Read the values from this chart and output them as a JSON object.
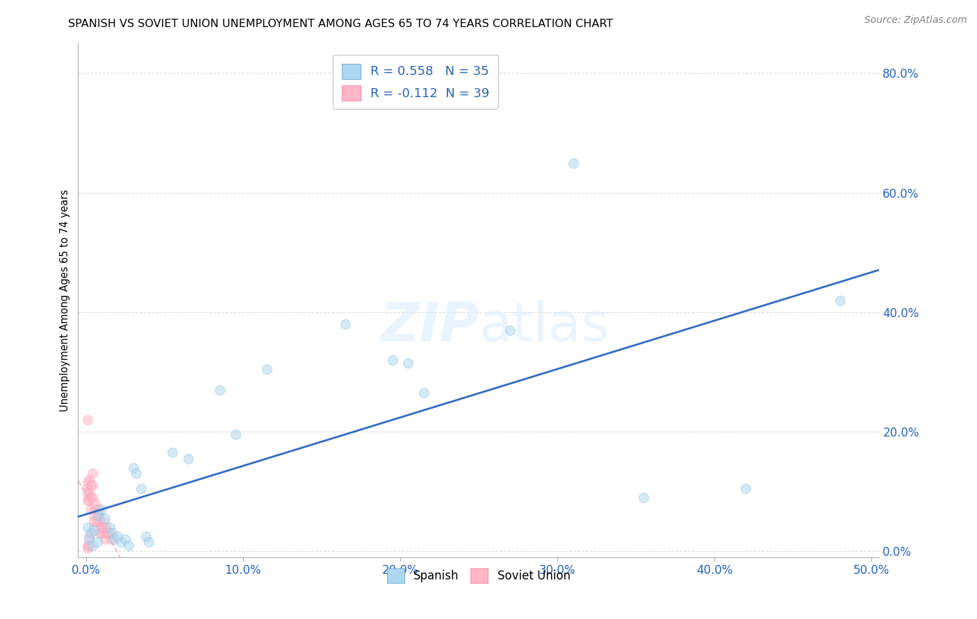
{
  "title": "SPANISH VS SOVIET UNION UNEMPLOYMENT AMONG AGES 65 TO 74 YEARS CORRELATION CHART",
  "source": "Source: ZipAtlas.com",
  "ylabel": "Unemployment Among Ages 65 to 74 years",
  "xlim": [
    -0.005,
    0.505
  ],
  "ylim": [
    -0.01,
    0.85
  ],
  "xticks": [
    0.0,
    0.1,
    0.2,
    0.3,
    0.4,
    0.5
  ],
  "yticks": [
    0.0,
    0.2,
    0.4,
    0.6,
    0.8
  ],
  "spanish_x": [
    0.001,
    0.002,
    0.003,
    0.004,
    0.005,
    0.007,
    0.008,
    0.01,
    0.012,
    0.015,
    0.017,
    0.018,
    0.02,
    0.022,
    0.025,
    0.027,
    0.03,
    0.032,
    0.035,
    0.038,
    0.04,
    0.055,
    0.065,
    0.085,
    0.095,
    0.115,
    0.165,
    0.195,
    0.205,
    0.215,
    0.27,
    0.31,
    0.355,
    0.42,
    0.48
  ],
  "spanish_y": [
    0.04,
    0.02,
    0.03,
    0.01,
    0.035,
    0.015,
    0.06,
    0.07,
    0.055,
    0.04,
    0.03,
    0.02,
    0.025,
    0.015,
    0.02,
    0.01,
    0.14,
    0.13,
    0.105,
    0.025,
    0.015,
    0.165,
    0.155,
    0.27,
    0.195,
    0.305,
    0.38,
    0.32,
    0.315,
    0.265,
    0.37,
    0.65,
    0.09,
    0.105,
    0.42
  ],
  "soviet_x": [
    0.001,
    0.001,
    0.001,
    0.001,
    0.001,
    0.001,
    0.001,
    0.002,
    0.002,
    0.002,
    0.002,
    0.002,
    0.003,
    0.003,
    0.003,
    0.004,
    0.004,
    0.004,
    0.005,
    0.005,
    0.005,
    0.006,
    0.006,
    0.007,
    0.007,
    0.008,
    0.008,
    0.009,
    0.009,
    0.01,
    0.01,
    0.011,
    0.011,
    0.012,
    0.012,
    0.013,
    0.014,
    0.015,
    0.016
  ],
  "soviet_y": [
    0.22,
    0.115,
    0.105,
    0.095,
    0.085,
    0.01,
    0.005,
    0.12,
    0.1,
    0.085,
    0.025,
    0.01,
    0.11,
    0.09,
    0.07,
    0.13,
    0.11,
    0.09,
    0.06,
    0.05,
    0.04,
    0.08,
    0.07,
    0.06,
    0.05,
    0.07,
    0.06,
    0.05,
    0.03,
    0.04,
    0.03,
    0.05,
    0.04,
    0.03,
    0.02,
    0.04,
    0.03,
    0.03,
    0.02
  ],
  "spanish_color": "#add8f0",
  "spanish_edge_color": "#7ab0d8",
  "soviet_color": "#ffb6c8",
  "soviet_edge_color": "#ff8fa3",
  "regression_spanish_color": "#2563c0",
  "regression_soviet_color": "#ffb0b8",
  "tick_color": "#2563c0",
  "spanish_R": 0.558,
  "spanish_N": 35,
  "soviet_R": -0.112,
  "soviet_N": 39,
  "marker_size": 100,
  "alpha": 0.55,
  "background_color": "#ffffff",
  "grid_color": "#cccccc",
  "title_fontsize": 11.5,
  "axis_label_fontsize": 10.5,
  "tick_fontsize": 12,
  "legend_fontsize": 13,
  "source_fontsize": 10
}
